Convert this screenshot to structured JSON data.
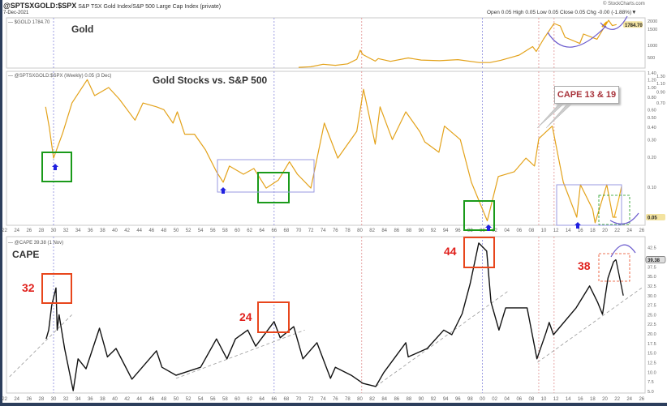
{
  "header": {
    "symbol": "@SPTSXGOLD:$SPX",
    "description": "S&P TSX Gold Index/S&P 500 Large Cap Index (private)",
    "date": "7-Dec-2021",
    "watermark": "© StockCharts.com",
    "ohlc": "Open 0.05  High 0.05  Low 0.05  Close 0.05  Chg -0.00 (-1.88%)▼"
  },
  "chart_data": [
    {
      "type": "line",
      "title": "Gold",
      "legend": "$GOLD 1784.70",
      "current_value_label": "1784.70",
      "color": "#e3a21a",
      "y_ticks": [
        "500",
        "1000",
        "1500",
        "2000"
      ],
      "points": [
        [
          1970,
          36
        ],
        [
          1972,
          60
        ],
        [
          1974,
          180
        ],
        [
          1976,
          130
        ],
        [
          1978,
          200
        ],
        [
          1979.5,
          420
        ],
        [
          1980.05,
          800
        ],
        [
          1980.5,
          620
        ],
        [
          1982.5,
          330
        ],
        [
          1983,
          450
        ],
        [
          1985,
          320
        ],
        [
          1987.9,
          480
        ],
        [
          1990,
          380
        ],
        [
          1993,
          350
        ],
        [
          1996,
          400
        ],
        [
          1999.5,
          260
        ],
        [
          2001.3,
          265
        ],
        [
          2003,
          370
        ],
        [
          2006,
          600
        ],
        [
          2008.2,
          950
        ],
        [
          2008.8,
          750
        ],
        [
          2010,
          1200
        ],
        [
          2011.7,
          1850
        ],
        [
          2012.7,
          1700
        ],
        [
          2013.5,
          1250
        ],
        [
          2015.9,
          1060
        ],
        [
          2016.5,
          1350
        ],
        [
          2018.7,
          1190
        ],
        [
          2019.7,
          1500
        ],
        [
          2020.6,
          2050
        ],
        [
          2021.2,
          1720
        ],
        [
          2021.9,
          1784.7
        ]
      ]
    },
    {
      "type": "line",
      "title": "Gold Stocks vs. S&P 500",
      "legend": "@SPTSXGOLD:$SPX (Weekly) 0.05 (3 Dec)",
      "current_value_label": "0.05",
      "y_scale": "log",
      "color": "#e3a21a",
      "y_ticks": [
        "1.40",
        "1.30",
        "1.20",
        "1.10",
        "1.00",
        "0.90",
        "0.80",
        "0.70",
        "0.60",
        "0.50",
        "0.40",
        "0.30",
        "0.20",
        "0.10"
      ],
      "points": [
        [
          1928.7,
          0.64
        ],
        [
          1929.3,
          0.4
        ],
        [
          1930,
          0.196
        ],
        [
          1931.5,
          0.35
        ],
        [
          1933,
          0.7
        ],
        [
          1935.5,
          1.2
        ],
        [
          1936.7,
          0.83
        ],
        [
          1939,
          1.0
        ],
        [
          1940.7,
          0.77
        ],
        [
          1943.3,
          0.47
        ],
        [
          1944.6,
          0.7
        ],
        [
          1946.8,
          0.64
        ],
        [
          1948,
          0.6
        ],
        [
          1949.5,
          0.44
        ],
        [
          1950.2,
          0.57
        ],
        [
          1951.4,
          0.34
        ],
        [
          1953,
          0.34
        ],
        [
          1954.8,
          0.237
        ],
        [
          1956.6,
          0.143
        ],
        [
          1957.7,
          0.112
        ],
        [
          1958.7,
          0.163
        ],
        [
          1961,
          0.135
        ],
        [
          1962.7,
          0.154
        ],
        [
          1964.7,
          0.098
        ],
        [
          1966.7,
          0.118
        ],
        [
          1968.5,
          0.18
        ],
        [
          1969.8,
          0.135
        ],
        [
          1972,
          0.098
        ],
        [
          1974.2,
          0.44
        ],
        [
          1976.4,
          0.196
        ],
        [
          1979.5,
          0.364
        ],
        [
          1980.6,
          0.96
        ],
        [
          1982.5,
          0.27
        ],
        [
          1983.3,
          0.64
        ],
        [
          1985.3,
          0.3
        ],
        [
          1987.5,
          0.57
        ],
        [
          1989.8,
          0.36
        ],
        [
          1990.6,
          0.285
        ],
        [
          1992.9,
          0.224
        ],
        [
          1993.8,
          0.41
        ],
        [
          1996.4,
          0.3
        ],
        [
          1998.2,
          0.112
        ],
        [
          2000.8,
          0.046
        ],
        [
          2002.6,
          0.128
        ],
        [
          2005.2,
          0.143
        ],
        [
          2007.1,
          0.196
        ],
        [
          2008.5,
          0.163
        ],
        [
          2009.2,
          0.307
        ],
        [
          2011.4,
          0.41
        ],
        [
          2013.2,
          0.112
        ],
        [
          2015.4,
          0.05
        ],
        [
          2016,
          0.106
        ],
        [
          2018,
          0.06
        ],
        [
          2018.4,
          0.044
        ],
        [
          2020.3,
          0.106
        ],
        [
          2021.3,
          0.05
        ],
        [
          2021.9,
          0.05
        ]
      ],
      "annotations": {
        "callout": "CAPE 13 & 19"
      }
    },
    {
      "type": "line",
      "title": "CAPE",
      "legend": "@CAPE 39.38 (1 Nov)",
      "current_value_label": "39.38",
      "color": "#111111",
      "y_ticks": [
        "42.5",
        "37.5",
        "35.0",
        "32.5",
        "30.0",
        "27.5",
        "25.0",
        "22.5",
        "20.0",
        "17.5",
        "15.0",
        "12.5",
        "10.0",
        "7.5",
        "5.0"
      ],
      "points": [
        [
          1928.8,
          18.7
        ],
        [
          1929.2,
          21
        ],
        [
          1929.7,
          27.4
        ],
        [
          1930.4,
          32
        ],
        [
          1930.6,
          21
        ],
        [
          1930.9,
          25
        ],
        [
          1931.8,
          16.2
        ],
        [
          1933.2,
          5.2
        ],
        [
          1934,
          13.5
        ],
        [
          1935.3,
          10.9
        ],
        [
          1937.5,
          21.5
        ],
        [
          1938.8,
          14
        ],
        [
          1940.2,
          16.2
        ],
        [
          1942.8,
          8.2
        ],
        [
          1946.8,
          15.6
        ],
        [
          1947.7,
          11.3
        ],
        [
          1950,
          9.2
        ],
        [
          1954,
          11.3
        ],
        [
          1956.6,
          18.7
        ],
        [
          1958.3,
          13.5
        ],
        [
          1959.7,
          18.7
        ],
        [
          1961.7,
          21
        ],
        [
          1963,
          16.8
        ],
        [
          1966,
          23.2
        ],
        [
          1967,
          19
        ],
        [
          1969.2,
          21.9
        ],
        [
          1970.7,
          13.5
        ],
        [
          1973,
          17.7
        ],
        [
          1975.2,
          8.4
        ],
        [
          1976,
          11.3
        ],
        [
          1978.6,
          9.2
        ],
        [
          1980.5,
          7.1
        ],
        [
          1982.6,
          6.3
        ],
        [
          1983.9,
          9.9
        ],
        [
          1987.5,
          17.7
        ],
        [
          1987.9,
          14
        ],
        [
          1991,
          16.2
        ],
        [
          1993.7,
          21
        ],
        [
          1995,
          19.8
        ],
        [
          1996.7,
          25.3
        ],
        [
          1998,
          33.1
        ],
        [
          1999.4,
          43.7
        ],
        [
          2000.7,
          41.6
        ],
        [
          2001.4,
          28.3
        ],
        [
          2002.7,
          21
        ],
        [
          2003.8,
          26.8
        ],
        [
          2007.3,
          26.8
        ],
        [
          2008.9,
          13.5
        ],
        [
          2010.4,
          20.4
        ],
        [
          2010.9,
          23
        ],
        [
          2011.6,
          19.8
        ],
        [
          2015.3,
          26.8
        ],
        [
          2017.5,
          32.5
        ],
        [
          2018.8,
          28.3
        ],
        [
          2019.6,
          25.1
        ],
        [
          2020.5,
          34.6
        ],
        [
          2021.4,
          38.8
        ],
        [
          2021.8,
          39.38
        ]
      ],
      "projection": [
        [
          2021.8,
          39.38
        ],
        [
          2023,
          30
        ]
      ],
      "trendlines": [
        [
          [
            1922.8,
            8.8
          ],
          [
            1933,
            25
          ]
        ],
        [
          [
            1950,
            8.4
          ],
          [
            1971,
            21
          ]
        ],
        [
          [
            1982.6,
            6.3
          ],
          [
            2004.4,
            31.4
          ]
        ],
        [
          [
            2009,
            12.6
          ],
          [
            2026,
            32
          ]
        ]
      ],
      "peak_labels": [
        "32",
        "24",
        "44",
        "38"
      ]
    }
  ],
  "x_axis": {
    "ticks": [
      "22",
      "24",
      "26",
      "28",
      "30",
      "32",
      "34",
      "36",
      "38",
      "40",
      "42",
      "44",
      "46",
      "48",
      "50",
      "52",
      "54",
      "56",
      "58",
      "60",
      "62",
      "64",
      "66",
      "68",
      "70",
      "72",
      "74",
      "76",
      "78",
      "80",
      "82",
      "84",
      "86",
      "88",
      "90",
      "92",
      "94",
      "96",
      "98",
      "00",
      "02",
      "04",
      "06",
      "08",
      "10",
      "12",
      "14",
      "16",
      "18",
      "20",
      "22",
      "24",
      "26"
    ],
    "range": [
      1922,
      2026
    ]
  },
  "vertical_markers": [
    {
      "year": 1930,
      "color": "#8888dd"
    },
    {
      "year": 1966,
      "color": "#8888dd"
    },
    {
      "year": 1980.3,
      "color": "#e09090"
    },
    {
      "year": 2000,
      "color": "#8888dd"
    },
    {
      "year": 2009.2,
      "color": "#e09090"
    },
    {
      "year": 2011.7,
      "color": "#e09090"
    }
  ]
}
